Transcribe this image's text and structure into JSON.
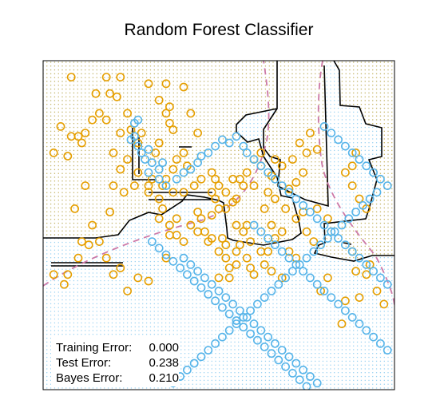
{
  "chart_data": {
    "type": "scatter",
    "title": "Random Forest Classifier",
    "xlabel": "",
    "ylabel": "",
    "xlim": [
      0,
      100
    ],
    "ylim": [
      0,
      100
    ],
    "axes_ticks": false,
    "grid": false,
    "background_dots": "class-colored dotted grid over the decision regions",
    "colors": {
      "class_orange": "#E69F00",
      "class_blue": "#56B4E9",
      "boundary": "#000000",
      "bayes_boundary": "#CC79A7",
      "frame": "#000000"
    },
    "series": [
      {
        "color": "#E69F00",
        "marker": "open-circle",
        "points": [
          [
            8,
            95
          ],
          [
            15,
            90
          ],
          [
            18,
            95
          ],
          [
            10,
            77
          ],
          [
            3,
            72
          ],
          [
            5,
            80
          ],
          [
            8,
            77
          ],
          [
            11,
            75
          ],
          [
            12,
            78
          ],
          [
            14,
            82
          ],
          [
            7,
            71
          ],
          [
            16,
            84
          ],
          [
            19,
            90
          ],
          [
            21,
            89
          ],
          [
            22,
            95
          ],
          [
            18,
            82
          ],
          [
            24,
            84
          ],
          [
            22,
            78
          ],
          [
            25,
            79
          ],
          [
            20,
            72
          ],
          [
            28,
            78
          ],
          [
            27,
            75
          ],
          [
            24,
            70
          ],
          [
            22,
            67
          ],
          [
            20,
            62
          ],
          [
            23,
            60
          ],
          [
            26,
            62
          ],
          [
            27,
            66
          ],
          [
            30,
            62
          ],
          [
            31,
            64
          ],
          [
            30,
            60
          ],
          [
            33,
            58
          ],
          [
            34,
            55
          ],
          [
            34,
            62
          ],
          [
            35,
            64
          ],
          [
            37,
            60
          ],
          [
            40,
            60
          ],
          [
            36,
            50
          ],
          [
            33,
            52
          ],
          [
            38,
            47
          ],
          [
            40,
            45
          ],
          [
            42,
            50
          ],
          [
            44,
            48
          ],
          [
            46,
            48
          ],
          [
            45,
            52
          ],
          [
            47,
            45
          ],
          [
            44,
            54
          ],
          [
            48,
            53
          ],
          [
            50,
            55
          ],
          [
            52,
            55
          ],
          [
            54,
            57
          ],
          [
            55,
            50
          ],
          [
            55,
            42
          ],
          [
            58,
            50
          ],
          [
            57,
            48
          ],
          [
            56,
            44
          ],
          [
            58,
            40
          ],
          [
            59,
            37
          ],
          [
            60,
            35
          ],
          [
            59,
            45
          ],
          [
            62,
            42
          ],
          [
            63,
            38
          ],
          [
            55,
            38
          ],
          [
            53,
            34
          ],
          [
            50,
            34
          ],
          [
            52,
            44
          ],
          [
            51,
            46
          ],
          [
            48,
            46
          ],
          [
            50,
            42
          ],
          [
            52,
            40
          ],
          [
            53,
            37
          ],
          [
            54,
            64
          ],
          [
            56,
            64
          ],
          [
            58,
            66
          ],
          [
            57,
            62
          ],
          [
            55,
            58
          ],
          [
            52,
            60
          ],
          [
            60,
            62
          ],
          [
            63,
            55
          ],
          [
            64,
            60
          ],
          [
            66,
            70
          ],
          [
            62,
            68
          ],
          [
            35,
            40
          ],
          [
            36,
            47
          ],
          [
            38,
            52
          ],
          [
            32,
            72
          ],
          [
            33,
            75
          ],
          [
            35,
            84
          ],
          [
            36,
            86
          ],
          [
            37,
            79
          ],
          [
            36,
            81
          ],
          [
            42,
            84
          ],
          [
            44,
            78
          ],
          [
            40,
            72
          ],
          [
            41,
            68
          ],
          [
            38,
            70
          ],
          [
            37,
            67
          ],
          [
            43,
            62
          ],
          [
            45,
            64
          ],
          [
            48,
            66
          ],
          [
            49,
            64
          ],
          [
            50,
            62
          ],
          [
            48,
            60
          ],
          [
            49,
            58
          ],
          [
            65,
            36
          ],
          [
            68,
            34
          ],
          [
            70,
            42
          ],
          [
            66,
            46
          ],
          [
            64,
            42
          ],
          [
            3,
            35
          ],
          [
            11,
            45
          ],
          [
            6,
            32
          ],
          [
            10,
            40
          ],
          [
            7,
            35
          ],
          [
            13,
            44
          ],
          [
            16,
            45
          ],
          [
            18,
            40
          ],
          [
            20,
            35
          ],
          [
            22,
            37
          ],
          [
            24,
            30
          ],
          [
            27,
            34
          ],
          [
            30,
            33
          ],
          [
            40,
            92
          ],
          [
            35,
            93
          ],
          [
            30,
            93
          ],
          [
            33,
            88
          ],
          [
            12,
            62
          ],
          [
            9,
            55
          ],
          [
            14,
            50
          ],
          [
            19,
            54
          ],
          [
            93,
            38
          ],
          [
            88,
            42
          ],
          [
            89,
            36
          ],
          [
            92,
            35
          ],
          [
            95,
            30
          ],
          [
            97,
            26
          ],
          [
            90,
            28
          ],
          [
            86,
            27
          ],
          [
            79,
            30
          ],
          [
            81,
            34
          ],
          [
            85,
            20
          ],
          [
            90,
            58
          ],
          [
            88,
            62
          ],
          [
            86,
            66
          ],
          [
            92,
            55
          ],
          [
            88,
            68
          ],
          [
            89,
            72
          ],
          [
            78,
            55
          ],
          [
            81,
            52
          ],
          [
            75,
            48
          ],
          [
            77,
            45
          ],
          [
            72,
            40
          ],
          [
            68,
            48
          ],
          [
            65,
            50
          ],
          [
            72,
            52
          ],
          [
            74,
            54
          ],
          [
            69,
            55
          ],
          [
            66,
            58
          ],
          [
            70,
            61
          ],
          [
            65,
            65
          ],
          [
            68,
            68
          ],
          [
            60,
            70
          ],
          [
            62,
            72
          ],
          [
            72,
            63
          ],
          [
            74,
            66
          ],
          [
            71,
            70
          ],
          [
            75,
            72
          ],
          [
            73,
            75
          ],
          [
            76,
            78
          ],
          [
            78,
            73
          ]
        ]
      },
      {
        "color": "#56B4E9",
        "marker": "open-circle",
        "points": [
          [
            27,
            82
          ],
          [
            26,
            81
          ],
          [
            26,
            77
          ],
          [
            25,
            76
          ],
          [
            27,
            74
          ],
          [
            28,
            72
          ],
          [
            30,
            73
          ],
          [
            29,
            70
          ],
          [
            31,
            69
          ],
          [
            30,
            66
          ],
          [
            33,
            67
          ],
          [
            34,
            69
          ],
          [
            33,
            64
          ],
          [
            35,
            62
          ],
          [
            38,
            64
          ],
          [
            40,
            66
          ],
          [
            42,
            67
          ],
          [
            44,
            69
          ],
          [
            45,
            71
          ],
          [
            47,
            72
          ],
          [
            49,
            74
          ],
          [
            51,
            76
          ],
          [
            53,
            75
          ],
          [
            55,
            77
          ],
          [
            57,
            74
          ],
          [
            58,
            72
          ],
          [
            60,
            70
          ],
          [
            62,
            68
          ],
          [
            64,
            66
          ],
          [
            66,
            64
          ],
          [
            68,
            62
          ],
          [
            70,
            60
          ],
          [
            72,
            58
          ],
          [
            74,
            56
          ],
          [
            76,
            54
          ],
          [
            78,
            52
          ],
          [
            80,
            50
          ],
          [
            82,
            48
          ],
          [
            84,
            46
          ],
          [
            86,
            44
          ],
          [
            88,
            42
          ],
          [
            90,
            40
          ],
          [
            92,
            38
          ],
          [
            94,
            36
          ],
          [
            96,
            34
          ],
          [
            98,
            32
          ],
          [
            60,
            50
          ],
          [
            62,
            48
          ],
          [
            64,
            46
          ],
          [
            66,
            44
          ],
          [
            68,
            42
          ],
          [
            70,
            40
          ],
          [
            72,
            38
          ],
          [
            74,
            36
          ],
          [
            76,
            34
          ],
          [
            78,
            32
          ],
          [
            80,
            30
          ],
          [
            82,
            28
          ],
          [
            84,
            26
          ],
          [
            86,
            24
          ],
          [
            88,
            22
          ],
          [
            90,
            20
          ],
          [
            92,
            18
          ],
          [
            94,
            16
          ],
          [
            96,
            14
          ],
          [
            98,
            12
          ],
          [
            40,
            40
          ],
          [
            42,
            38
          ],
          [
            44,
            36
          ],
          [
            46,
            34
          ],
          [
            48,
            32
          ],
          [
            50,
            30
          ],
          [
            52,
            28
          ],
          [
            54,
            26
          ],
          [
            56,
            24
          ],
          [
            58,
            22
          ],
          [
            60,
            20
          ],
          [
            62,
            18
          ],
          [
            64,
            16
          ],
          [
            66,
            14
          ],
          [
            68,
            12
          ],
          [
            70,
            10
          ],
          [
            72,
            8
          ],
          [
            74,
            6
          ],
          [
            76,
            4
          ],
          [
            78,
            2
          ],
          [
            31,
            45
          ],
          [
            33,
            43
          ],
          [
            35,
            41
          ],
          [
            37,
            39
          ],
          [
            39,
            37
          ],
          [
            41,
            35
          ],
          [
            43,
            33
          ],
          [
            45,
            31
          ],
          [
            47,
            29
          ],
          [
            49,
            27
          ],
          [
            51,
            25
          ],
          [
            53,
            23
          ],
          [
            55,
            21
          ],
          [
            57,
            19
          ],
          [
            59,
            17
          ],
          [
            61,
            15
          ],
          [
            63,
            13
          ],
          [
            65,
            11
          ],
          [
            67,
            9
          ],
          [
            69,
            7
          ],
          [
            71,
            5
          ],
          [
            73,
            3
          ],
          [
            75,
            1
          ],
          [
            80,
            80
          ],
          [
            82,
            78
          ],
          [
            84,
            76
          ],
          [
            86,
            74
          ],
          [
            88,
            72
          ],
          [
            90,
            70
          ],
          [
            92,
            68
          ],
          [
            94,
            66
          ],
          [
            96,
            64
          ],
          [
            98,
            62
          ],
          [
            95,
            60
          ],
          [
            93,
            58
          ],
          [
            91,
            56
          ],
          [
            89,
            54
          ],
          [
            87,
            52
          ],
          [
            85,
            50
          ],
          [
            83,
            48
          ],
          [
            81,
            46
          ],
          [
            79,
            44
          ],
          [
            77,
            42
          ],
          [
            75,
            40
          ],
          [
            73,
            38
          ],
          [
            71,
            36
          ],
          [
            69,
            34
          ],
          [
            67,
            32
          ],
          [
            65,
            30
          ],
          [
            63,
            28
          ],
          [
            61,
            26
          ],
          [
            59,
            24
          ],
          [
            57,
            22
          ],
          [
            55,
            20
          ],
          [
            53,
            18
          ],
          [
            51,
            16
          ],
          [
            49,
            14
          ],
          [
            47,
            12
          ],
          [
            45,
            10
          ],
          [
            43,
            8
          ],
          [
            41,
            6
          ],
          [
            39,
            4
          ],
          [
            37,
            2
          ]
        ]
      }
    ],
    "training_error": {
      "label": "Training Error:",
      "value": "0.000"
    },
    "test_error": {
      "label": "Test Error:",
      "value": "0.238"
    },
    "bayes_error": {
      "label": "Bayes Error:",
      "value": "0.210"
    }
  }
}
